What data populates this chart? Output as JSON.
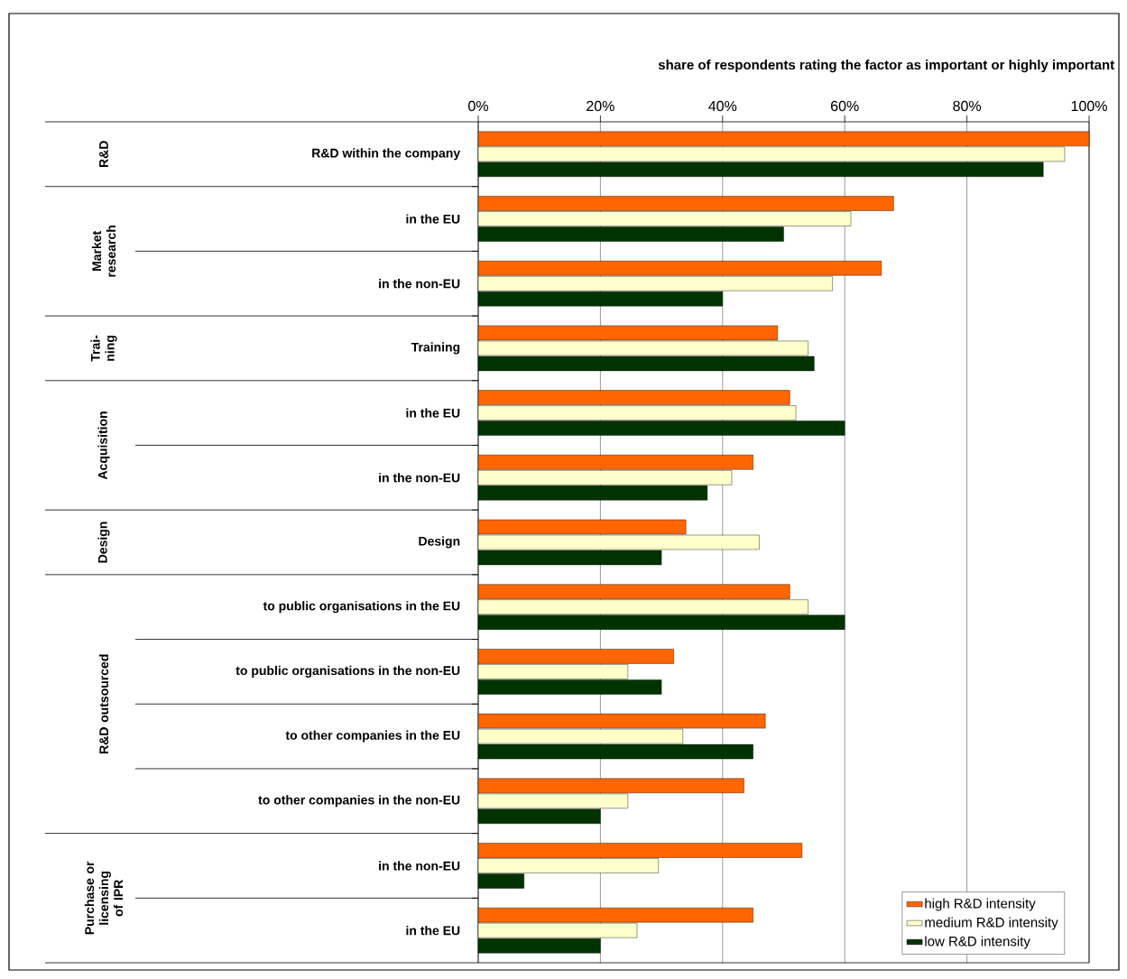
{
  "chart_data": {
    "type": "bar",
    "orientation": "horizontal",
    "xlabel": "share of respondents rating the factor as important or highly important",
    "categories": [
      "R&D within the company",
      "in the EU",
      "in the non-EU",
      "Training",
      "in the EU",
      "in the non-EU",
      "Design",
      "to public organisations in the EU",
      "to public organisations in the non-EU",
      "to other companies in the EU",
      "to other companies in the non-EU",
      "in the non-EU",
      "in the EU"
    ],
    "series": [
      {
        "name": "high R&D intensity",
        "color": "#ff6600",
        "values": [
          100,
          68,
          66,
          49,
          51,
          45,
          34,
          51,
          32,
          47,
          43.5,
          53,
          45
        ]
      },
      {
        "name": "medium R&D intensity",
        "color": "#ffffcc",
        "values": [
          96,
          61,
          58,
          54,
          52,
          41.5,
          46,
          54,
          24.5,
          33.5,
          24.5,
          29.5,
          26
        ]
      },
      {
        "name": "low R&D intensity",
        "color": "#003300",
        "values": [
          92.5,
          50,
          40,
          55,
          60,
          37.5,
          30,
          60,
          30,
          45,
          20,
          7.5,
          20
        ]
      }
    ],
    "xlim": [
      0,
      100
    ],
    "xticks": [
      {
        "value": 0,
        "label": "0%"
      },
      {
        "value": 20,
        "label": "20%"
      },
      {
        "value": 40,
        "label": "40%"
      },
      {
        "value": 60,
        "label": "60%"
      },
      {
        "value": 80,
        "label": "80%"
      },
      {
        "value": 100,
        "label": "100%"
      }
    ],
    "annotations": [
      "R&D",
      "Market research",
      "Trai- ning",
      "Acquisition",
      "Design",
      "R&D outsourced",
      "Purchase or licensing of IPR"
    ],
    "grid": "x",
    "legend": "bottom right"
  }
}
